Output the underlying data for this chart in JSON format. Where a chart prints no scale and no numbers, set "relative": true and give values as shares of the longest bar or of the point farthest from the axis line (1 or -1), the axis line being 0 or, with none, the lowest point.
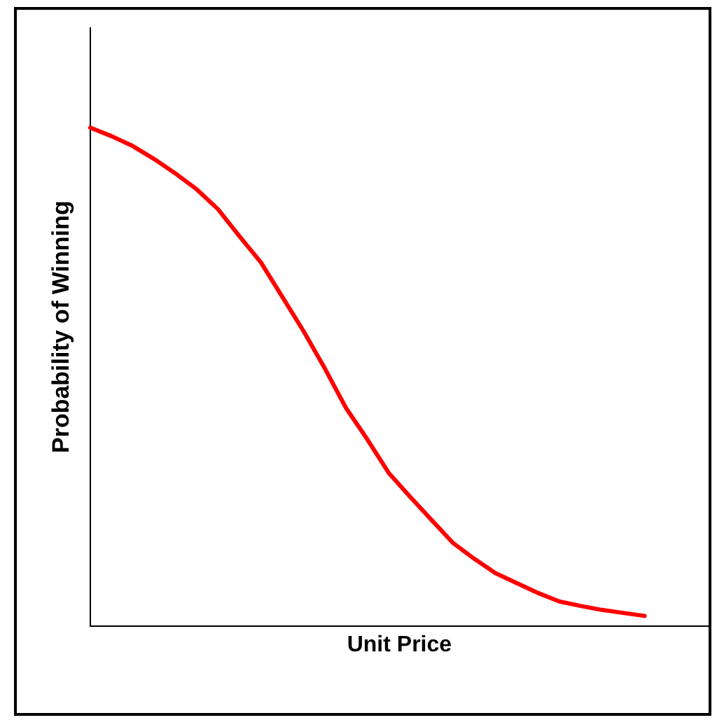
{
  "chart_data": {
    "type": "line",
    "relative": true,
    "xlabel": "Unit Price",
    "ylabel": "Probability of Winning",
    "marker": "none",
    "legend": false,
    "grid": false,
    "tick_labels": false,
    "categories": [
      null,
      null,
      null,
      null,
      null,
      null,
      null,
      null,
      null,
      null,
      null,
      null,
      null,
      null,
      null,
      null,
      null,
      null,
      null,
      null,
      null,
      null,
      null,
      null,
      null,
      null,
      null,
      null,
      null,
      null
    ],
    "series": [
      {
        "color": "#ff0000",
        "values": [
          1,
          0.983,
          0.963,
          0.937,
          0.908,
          0.876,
          0.836,
          0.782,
          0.73,
          0.661,
          0.592,
          0.517,
          0.437,
          0.374,
          0.307,
          0.259,
          0.213,
          0.167,
          0.135,
          0.106,
          0.086,
          0.066,
          0.049,
          0.04,
          0.032,
          0.026,
          0.02,
          null,
          null,
          null
        ]
      }
    ]
  }
}
